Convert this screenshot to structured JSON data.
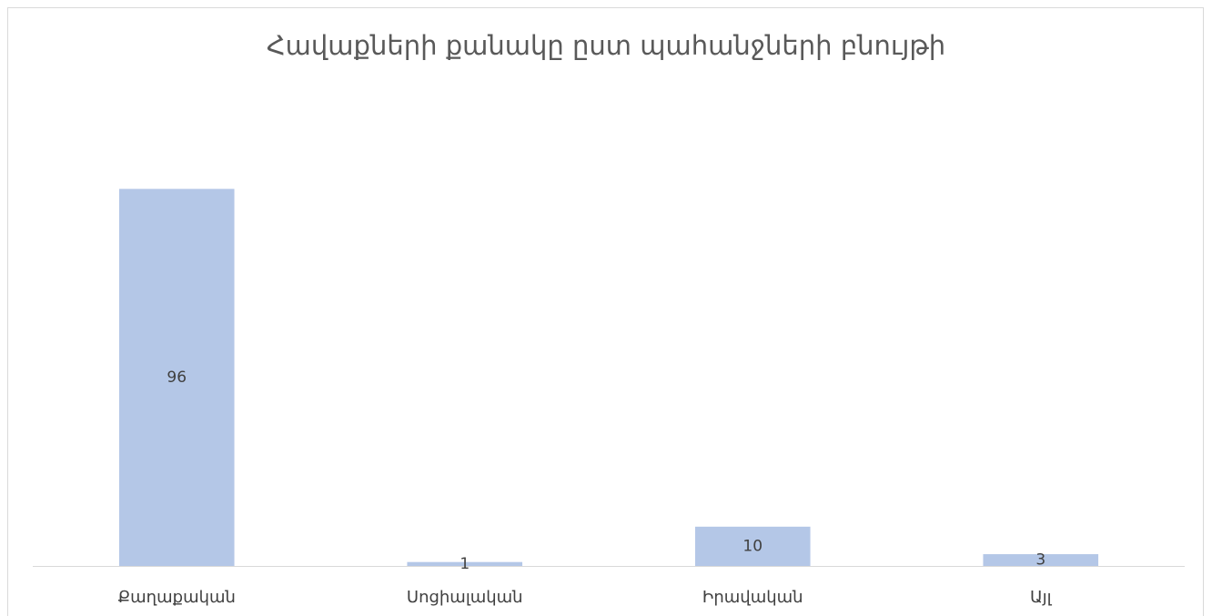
{
  "chart_data": {
    "type": "bar",
    "title": "Հավաքների քանակը ըստ պահանջների բնույթի",
    "categories": [
      "Քաղաքական",
      "Սոցիալական",
      "Իրավական",
      "Այլ"
    ],
    "values": [
      96,
      1,
      10,
      3
    ],
    "color": "#b4c7e7",
    "ylim": [
      0,
      120
    ]
  }
}
